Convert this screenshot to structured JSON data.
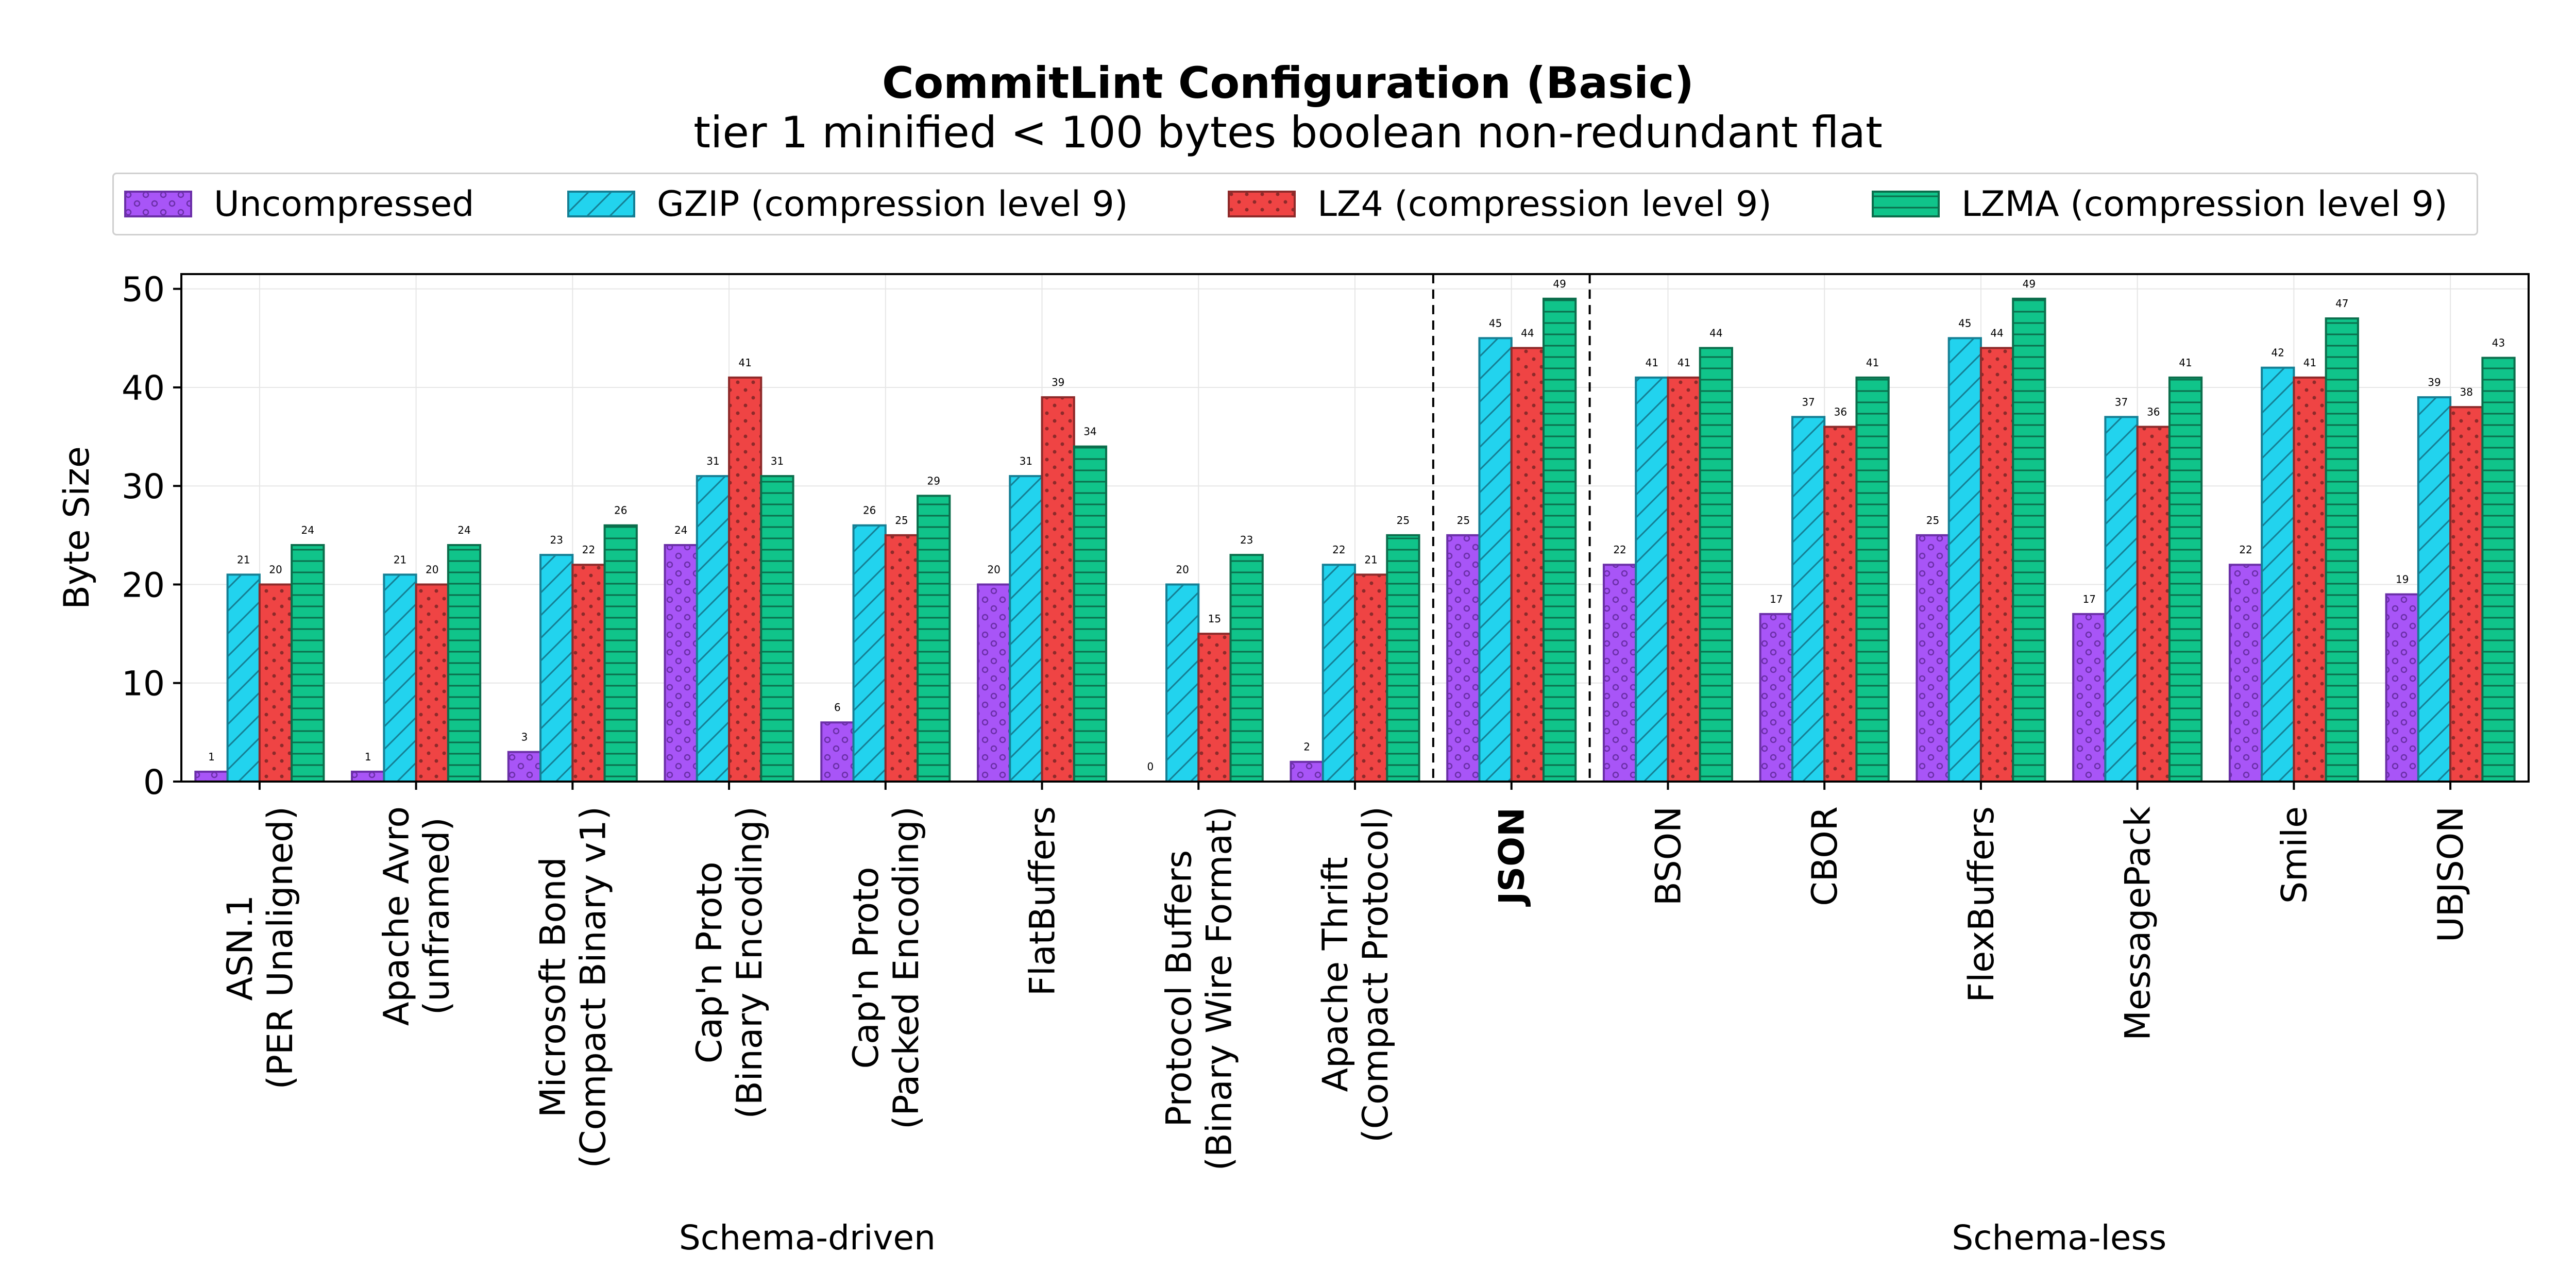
{
  "chart_data": {
    "type": "bar",
    "title": "CommitLint Configuration (Basic)",
    "subtitle": "tier 1 minified < 100 bytes boolean non-redundant flat",
    "ylabel": "Byte Size",
    "xlabel": "",
    "ylim": [
      0,
      51.5
    ],
    "yticks": [
      0,
      10,
      20,
      30,
      40,
      50
    ],
    "grid": true,
    "legend_position": "top",
    "categories": [
      "ASN.1\n(PER Unaligned)",
      "Apache Avro\n(unframed)",
      "Microsoft Bond\n(Compact Binary v1)",
      "Cap'n Proto\n(Binary Encoding)",
      "Cap'n Proto\n(Packed Encoding)",
      "FlatBuffers",
      "Protocol Buffers\n(Binary Wire Format)",
      "Apache Thrift\n(Compact Protocol)",
      "JSON",
      "BSON",
      "CBOR",
      "FlexBuffers",
      "MessagePack",
      "Smile",
      "UBJSON"
    ],
    "bold_categories": [
      "JSON"
    ],
    "groups": [
      {
        "label": "Schema-driven",
        "from": 0,
        "to": 7
      },
      {
        "label": "Schema-less",
        "from": 9,
        "to": 14
      }
    ],
    "series": [
      {
        "name": "Uncompressed",
        "color": "#a855f7",
        "edge": "#6b2fa8",
        "hatch": "circles",
        "values": [
          1,
          1,
          3,
          24,
          6,
          20,
          0,
          2,
          25,
          22,
          17,
          25,
          17,
          22,
          19
        ]
      },
      {
        "name": "GZIP (compression level 9)",
        "color": "#22d3ee",
        "edge": "#157f94",
        "hatch": "diagonal",
        "values": [
          21,
          21,
          23,
          31,
          26,
          31,
          20,
          22,
          45,
          41,
          37,
          45,
          37,
          42,
          39
        ]
      },
      {
        "name": "LZ4 (compression level 9)",
        "color": "#ef4444",
        "edge": "#8e2a2a",
        "hatch": "dots",
        "values": [
          20,
          20,
          22,
          41,
          25,
          39,
          15,
          21,
          44,
          41,
          36,
          44,
          36,
          41,
          38
        ]
      },
      {
        "name": "LZMA (compression level 9)",
        "color": "#10c48a",
        "edge": "#0b6e4c",
        "hatch": "horizontal",
        "values": [
          24,
          24,
          26,
          31,
          29,
          34,
          23,
          25,
          49,
          44,
          41,
          49,
          41,
          47,
          43
        ]
      }
    ]
  }
}
